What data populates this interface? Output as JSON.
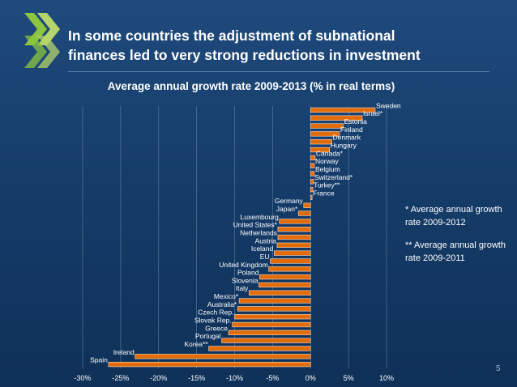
{
  "slide": {
    "title_line1": "In some countries the adjustment of subnational",
    "title_line2": "finances led to very strong reductions in investment",
    "page_number": "5"
  },
  "notes": {
    "note1": "* Average annual growth rate 2009-2012",
    "note2": "** Average annual growth rate 2009-2011"
  },
  "colors": {
    "background": "#1a4373",
    "bar_fill": "#e36c0a",
    "bar_stroke": "#f6ddc8",
    "gridline": "#6f8fb5",
    "text": "#ffffff"
  },
  "chart_data": {
    "type": "bar",
    "orientation": "horizontal",
    "title": "Average annual growth rate 2009-2013 (% in real terms)",
    "xlim": [
      -30,
      10
    ],
    "xticks": [
      -30,
      -25,
      -20,
      -15,
      -10,
      -5,
      0,
      5,
      10
    ],
    "xtick_labels": [
      "-30%",
      "-25%",
      "-20%",
      "-15%",
      "-10%",
      "-5%",
      "0%",
      "5%",
      "10%"
    ],
    "grid": "vertical",
    "categories": [
      "Sweden",
      "Israel*",
      "Estonia",
      "Finland",
      "Denmark",
      "Hungary",
      "Canada*",
      "Norway",
      "Belgium",
      "Switzerland*",
      "Turkey**",
      "France",
      "Germany",
      "Japan*",
      "Luxembourg",
      "United States*",
      "Netherlands",
      "Austria",
      "Iceland",
      "EU",
      "United Kingdom",
      "Poland",
      "Slovenia",
      "Italy",
      "Mexico*",
      "Australia*",
      "Czech Rep.",
      "Slovak Rep.",
      "Greece",
      "Portugal",
      "Korea**",
      "Ireland",
      "Spain"
    ],
    "values": [
      8.5,
      6.8,
      4.3,
      3.8,
      2.8,
      2.5,
      0.6,
      0.5,
      0.5,
      0.4,
      0.3,
      0.2,
      -0.9,
      -1.6,
      -4.1,
      -4.3,
      -4.3,
      -4.4,
      -4.8,
      -5.3,
      -5.5,
      -6.7,
      -6.8,
      -8.1,
      -9.4,
      -9.6,
      -10.0,
      -10.3,
      -10.8,
      -11.7,
      -13.4,
      -23.1,
      -26.6
    ]
  }
}
